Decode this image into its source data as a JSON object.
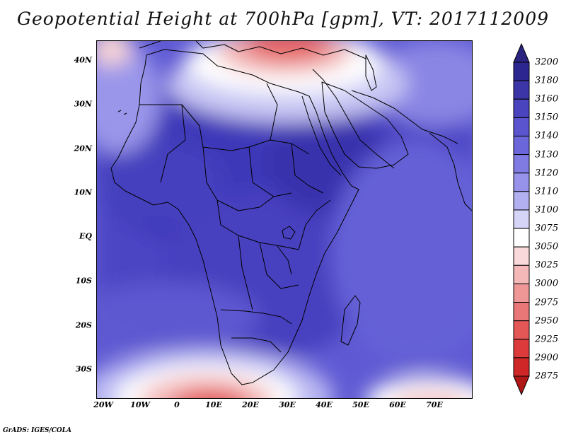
{
  "title": "Geopotential Height at 700hPa [gpm], VT: 2017112009",
  "credit": "GrADS: IGES/COLA",
  "lat_labels": [
    "40N",
    "30N",
    "20N",
    "10N",
    "EQ",
    "10S",
    "20S",
    "30S"
  ],
  "lon_labels": [
    "20W",
    "10W",
    "0",
    "10E",
    "20E",
    "30E",
    "40E",
    "50E",
    "60E",
    "70E"
  ],
  "colorbar": {
    "labels": [
      "3200",
      "3180",
      "3160",
      "3150",
      "3140",
      "3130",
      "3120",
      "3110",
      "3100",
      "3075",
      "3050",
      "3025",
      "3000",
      "2975",
      "2950",
      "2925",
      "2900",
      "2875"
    ],
    "colors": [
      "#2c2690",
      "#3b35a8",
      "#4a44bf",
      "#5a54cf",
      "#6b66da",
      "#807be3",
      "#9793ea",
      "#b2b0f1",
      "#d6d5f8",
      "#ffffff",
      "#f9d9d9",
      "#f4b8b8",
      "#ef9797",
      "#e97777",
      "#e35757",
      "#dd3b3b",
      "#cf2727",
      "#b81c1c"
    ],
    "top_arrow_color": "#2a2380",
    "bottom_arrow_color": "#b01818"
  }
}
